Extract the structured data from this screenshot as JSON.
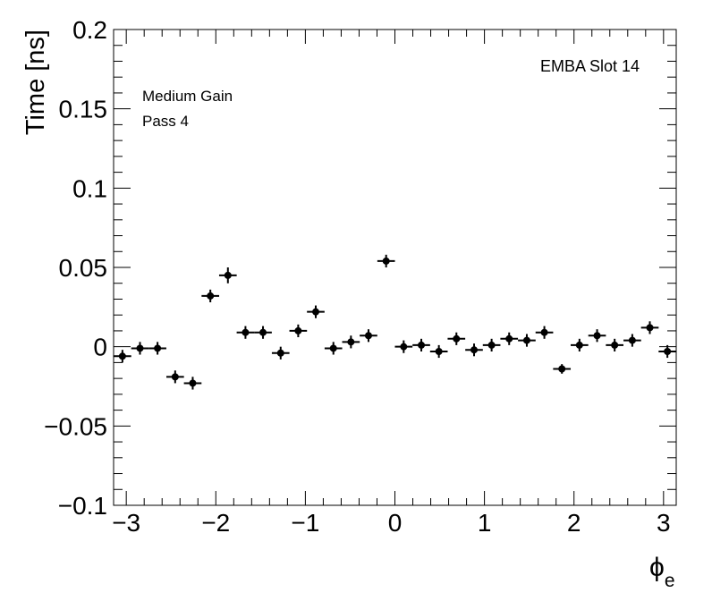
{
  "chart_data": {
    "type": "scatter",
    "title": "",
    "xlabel": "ϕ",
    "xlabel_sub": "e",
    "ylabel": "Time [ns]",
    "xlim": [
      -3.1416,
      3.1416
    ],
    "ylim": [
      -0.1,
      0.2
    ],
    "x_ticks": [
      {
        "value": -3,
        "label": "−3"
      },
      {
        "value": -2,
        "label": "−2"
      },
      {
        "value": -1,
        "label": "−1"
      },
      {
        "value": 0,
        "label": "0"
      },
      {
        "value": 1,
        "label": "1"
      },
      {
        "value": 2,
        "label": "2"
      },
      {
        "value": 3,
        "label": "3"
      }
    ],
    "y_ticks": [
      {
        "value": -0.1,
        "label": "−0.1"
      },
      {
        "value": -0.05,
        "label": "−0.05"
      },
      {
        "value": 0,
        "label": "0"
      },
      {
        "value": 0.05,
        "label": "0.05"
      },
      {
        "value": 0.1,
        "label": "0.1"
      },
      {
        "value": 0.15,
        "label": "0.15"
      },
      {
        "value": 0.2,
        "label": "0.2"
      }
    ],
    "annotations": {
      "module": "EMBA Slot 14",
      "gain": "Medium Gain",
      "pass": "Pass 4"
    },
    "x_half_width": 0.0982,
    "grid": false,
    "legend": "none",
    "points": [
      {
        "x": -3.043,
        "y": -0.006,
        "err": 0.004
      },
      {
        "x": -2.847,
        "y": -0.001,
        "err": 0.004
      },
      {
        "x": -2.651,
        "y": -0.001,
        "err": 0.004
      },
      {
        "x": -2.454,
        "y": -0.019,
        "err": 0.004
      },
      {
        "x": -2.258,
        "y": -0.023,
        "err": 0.004
      },
      {
        "x": -2.061,
        "y": 0.032,
        "err": 0.004
      },
      {
        "x": -1.865,
        "y": 0.045,
        "err": 0.005
      },
      {
        "x": -1.669,
        "y": 0.009,
        "err": 0.004
      },
      {
        "x": -1.473,
        "y": 0.009,
        "err": 0.004
      },
      {
        "x": -1.276,
        "y": -0.004,
        "err": 0.004
      },
      {
        "x": -1.08,
        "y": 0.01,
        "err": 0.004
      },
      {
        "x": -0.884,
        "y": 0.022,
        "err": 0.004
      },
      {
        "x": -0.687,
        "y": -0.001,
        "err": 0.004
      },
      {
        "x": -0.491,
        "y": 0.003,
        "err": 0.004
      },
      {
        "x": -0.295,
        "y": 0.007,
        "err": 0.004
      },
      {
        "x": -0.098,
        "y": 0.054,
        "err": 0.004
      },
      {
        "x": 0.098,
        "y": 0.0,
        "err": 0.004
      },
      {
        "x": 0.295,
        "y": 0.001,
        "err": 0.004
      },
      {
        "x": 0.491,
        "y": -0.003,
        "err": 0.004
      },
      {
        "x": 0.687,
        "y": 0.005,
        "err": 0.004
      },
      {
        "x": 0.884,
        "y": -0.002,
        "err": 0.004
      },
      {
        "x": 1.08,
        "y": 0.001,
        "err": 0.004
      },
      {
        "x": 1.276,
        "y": 0.005,
        "err": 0.004
      },
      {
        "x": 1.473,
        "y": 0.004,
        "err": 0.004
      },
      {
        "x": 1.669,
        "y": 0.009,
        "err": 0.004
      },
      {
        "x": 1.865,
        "y": -0.014,
        "err": 0.003
      },
      {
        "x": 2.061,
        "y": 0.001,
        "err": 0.004
      },
      {
        "x": 2.258,
        "y": 0.007,
        "err": 0.004
      },
      {
        "x": 2.454,
        "y": 0.001,
        "err": 0.004
      },
      {
        "x": 2.651,
        "y": 0.004,
        "err": 0.004
      },
      {
        "x": 2.847,
        "y": 0.012,
        "err": 0.004
      },
      {
        "x": 3.043,
        "y": -0.003,
        "err": 0.004
      }
    ],
    "colors": {
      "marker": "#000000",
      "axis": "#000000",
      "background": "#ffffff"
    }
  }
}
